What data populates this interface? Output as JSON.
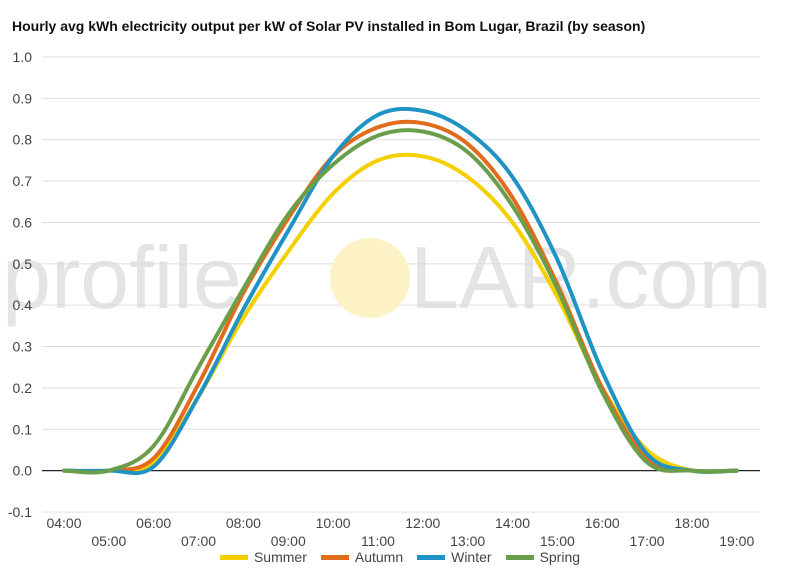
{
  "chart_data": {
    "type": "line",
    "title": "Hourly avg kWh electricity output per kW of Solar PV installed in Bom Lugar, Brazil (by season)",
    "x": [
      "04:00",
      "05:00",
      "06:00",
      "07:00",
      "08:00",
      "09:00",
      "10:00",
      "11:00",
      "12:00",
      "13:00",
      "14:00",
      "15:00",
      "16:00",
      "17:00",
      "18:00",
      "19:00"
    ],
    "ylim": [
      -0.1,
      1.0
    ],
    "yticks": [
      "-0.1",
      "0.0",
      "0.1",
      "0.2",
      "0.3",
      "0.4",
      "0.5",
      "0.6",
      "0.7",
      "0.8",
      "0.9",
      "1.0"
    ],
    "grid": true,
    "legend_position": "bottom",
    "series": [
      {
        "name": "Summer",
        "color": "#f4d000",
        "values": [
          0.0,
          0.0,
          0.02,
          0.18,
          0.37,
          0.53,
          0.67,
          0.75,
          0.76,
          0.71,
          0.6,
          0.42,
          0.2,
          0.05,
          0.0,
          0.0
        ]
      },
      {
        "name": "Autumn",
        "color": "#e06c1c",
        "values": [
          0.0,
          0.0,
          0.03,
          0.21,
          0.43,
          0.61,
          0.76,
          0.83,
          0.84,
          0.79,
          0.66,
          0.45,
          0.2,
          0.03,
          0.0,
          0.0
        ]
      },
      {
        "name": "Winter",
        "color": "#1f93c4",
        "values": [
          0.0,
          0.0,
          0.01,
          0.18,
          0.39,
          0.58,
          0.76,
          0.86,
          0.87,
          0.82,
          0.71,
          0.51,
          0.24,
          0.04,
          0.0,
          0.0
        ]
      },
      {
        "name": "Spring",
        "color": "#6b9e4a",
        "values": [
          0.0,
          0.0,
          0.06,
          0.25,
          0.44,
          0.62,
          0.74,
          0.81,
          0.82,
          0.77,
          0.64,
          0.44,
          0.19,
          0.02,
          0.0,
          0.0
        ]
      }
    ]
  },
  "watermark": {
    "text_left": "profile",
    "text_sun": "S",
    "text_right": "LAR.com",
    "sun_color": "#fdf1c6"
  }
}
